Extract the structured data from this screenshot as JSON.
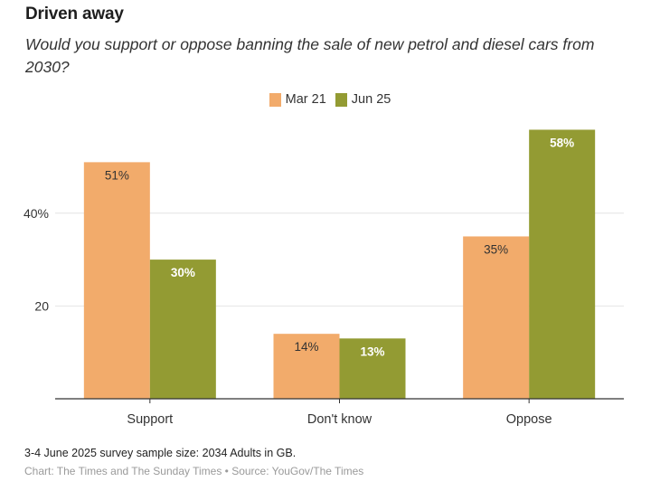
{
  "chart_data": {
    "type": "bar",
    "title": "Driven away",
    "subtitle": "Would you support or oppose banning the sale of new petrol and diesel cars from 2030?",
    "categories": [
      "Support",
      "Don't know",
      "Oppose"
    ],
    "series": [
      {
        "name": "Mar 21",
        "color": "#f2ab6b",
        "values": [
          51,
          14,
          35
        ],
        "labels": [
          "51%",
          "14%",
          "35%"
        ],
        "label_color": "#333333"
      },
      {
        "name": "Jun 25",
        "color": "#939b33",
        "values": [
          30,
          13,
          58
        ],
        "labels": [
          "30%",
          "13%",
          "58%"
        ],
        "label_color": "#ffffff"
      }
    ],
    "xlabel": "",
    "ylabel": "",
    "ylim": [
      0,
      60
    ],
    "yticks": [
      20,
      40
    ],
    "ytick_labels": [
      "20",
      "40%"
    ],
    "grid": true,
    "legend_position": "top-center"
  },
  "footer": {
    "note": "3-4 June 2025 survey sample size: 2034 Adults in GB.",
    "credit": "Chart: The Times and The Sunday Times • Source: YouGov/The Times"
  }
}
